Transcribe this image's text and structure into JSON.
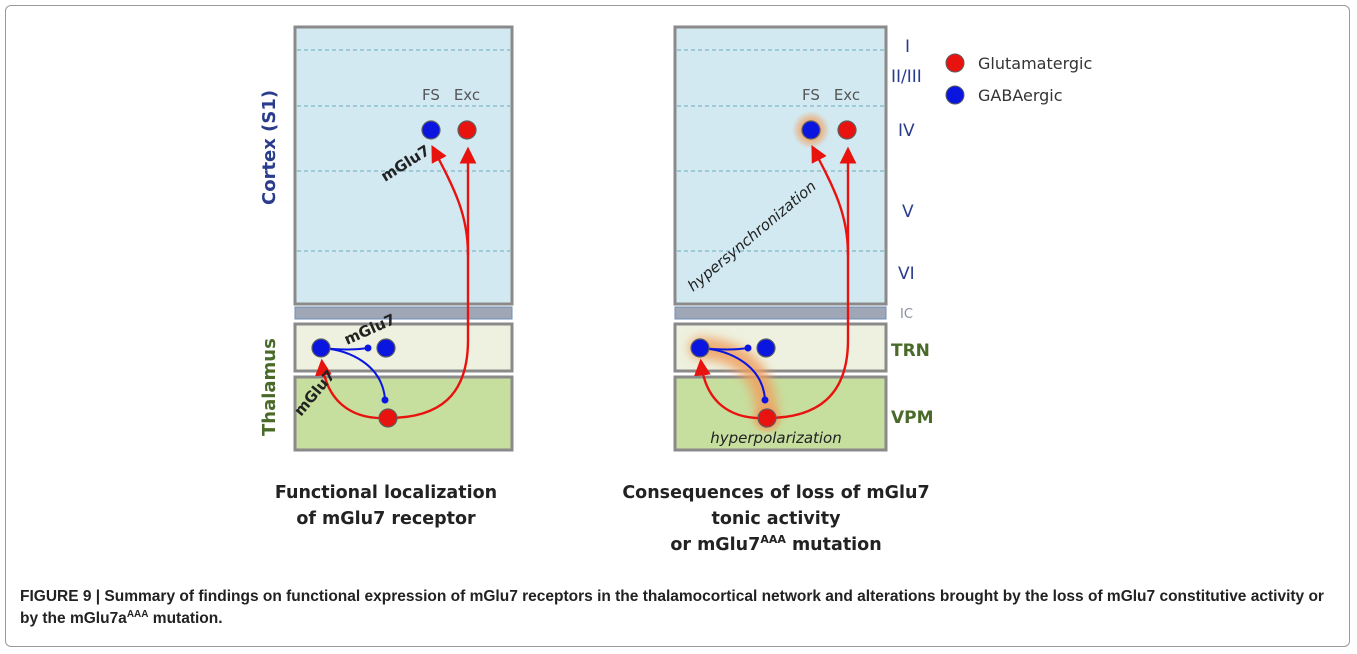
{
  "figure": {
    "left_panel": {
      "region_cortex": "Cortex (S1)",
      "region_thalamus": "Thalamus",
      "cell_fs": "FS",
      "cell_exc": "Exc",
      "receptor_label_cortex": "mGlu7",
      "receptor_label_trn": "mGlu7",
      "receptor_label_vpm": "mGlu7",
      "title_line1": "Functional localization",
      "title_line2": "of mGlu7 receptor"
    },
    "right_panel": {
      "cell_fs": "FS",
      "cell_exc": "Exc",
      "effect_cortex": "hypersynchronization",
      "effect_thalamus": "hyperpolarization",
      "title_line1": "Consequences of loss of mGlu7",
      "title_line2": "tonic activity",
      "title_line3_pre": "or mGlu7",
      "title_line3_sup": "AAA",
      "title_line3_post": " mutation"
    },
    "layers": {
      "l1": "I",
      "l23": "II/III",
      "l4": "IV",
      "l5": "V",
      "l6": "VI",
      "ic": "IC",
      "trn": "TRN",
      "vpm": "VPM"
    },
    "legend": {
      "glutamatergic": "Glutamatergic",
      "gabaergic": "GABAergic"
    },
    "colors": {
      "glutamatergic": "#e8130f",
      "gabaergic": "#0a16e0",
      "cortex_fill": "#d2e9f2",
      "trn_fill": "#eef1df",
      "vpm_fill": "#c6de9e",
      "ic_fill": "#9fa7b6",
      "glow": "#f0a868"
    }
  },
  "caption": {
    "prefix": "FIGURE 9 | Summary of findings on functional expression of mGlu7 receptors in the thalamocortical network and alterations brought by the loss of mGlu7 constitutive activity or by the mGlu7a",
    "sup": "AAA",
    "suffix": " mutation."
  }
}
